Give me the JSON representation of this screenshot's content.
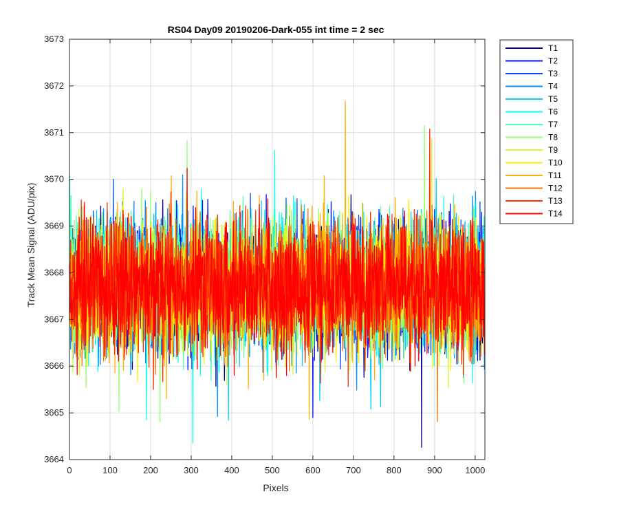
{
  "chart_data": {
    "type": "line",
    "title": "RS04 Day09 20190206-Dark-055 int time = 2 sec",
    "xlabel": "Pixels",
    "ylabel": "Track Mean Signal (ADU/pix)",
    "xlim": [
      0,
      1024
    ],
    "ylim": [
      3664,
      3673
    ],
    "xticks": [
      0,
      100,
      200,
      300,
      400,
      500,
      600,
      700,
      800,
      900,
      1000
    ],
    "yticks": [
      3664,
      3665,
      3666,
      3667,
      3668,
      3669,
      3670,
      3671,
      3672,
      3673
    ],
    "grid": true,
    "legend_position": "outside-top-right",
    "series_profile": {
      "n_points": 1024,
      "mean": 3667.7,
      "typical_min": 3665.5,
      "typical_max": 3670.3,
      "extreme_min": 3664.2,
      "extreme_max": 3672.1
    },
    "series": [
      {
        "name": "T1",
        "color": "#00008F"
      },
      {
        "name": "T2",
        "color": "#0010FF"
      },
      {
        "name": "T3",
        "color": "#0050FF"
      },
      {
        "name": "T4",
        "color": "#0090FF"
      },
      {
        "name": "T5",
        "color": "#00CFFF"
      },
      {
        "name": "T6",
        "color": "#10FFEF"
      },
      {
        "name": "T7",
        "color": "#50FFAF"
      },
      {
        "name": "T8",
        "color": "#90FF70"
      },
      {
        "name": "T9",
        "color": "#CFFF30"
      },
      {
        "name": "T10",
        "color": "#FFEF00"
      },
      {
        "name": "T11",
        "color": "#FFAF00"
      },
      {
        "name": "T12",
        "color": "#FF7000"
      },
      {
        "name": "T13",
        "color": "#FF3000"
      },
      {
        "name": "T14",
        "color": "#FF0000"
      }
    ]
  }
}
